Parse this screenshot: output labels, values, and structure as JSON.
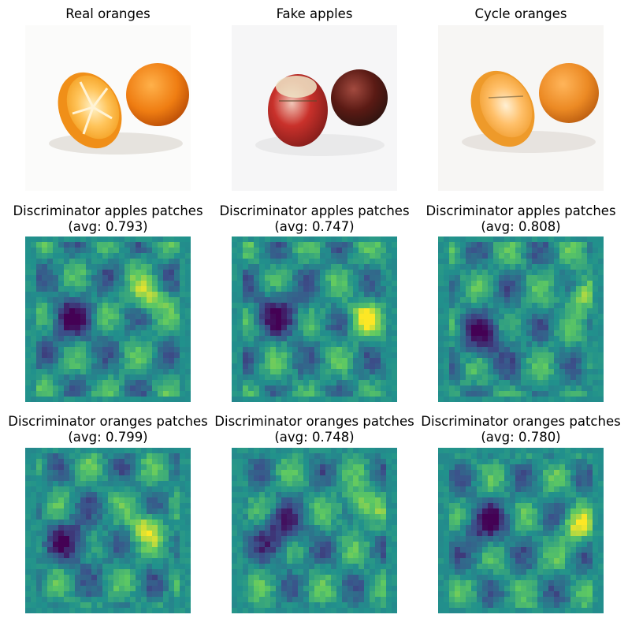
{
  "figure": {
    "row1": [
      {
        "title": "Real oranges",
        "content": "photo of a halved orange and a whole orange on white background"
      },
      {
        "title": "Fake apples",
        "content": "photo of two red apples generated from oranges"
      },
      {
        "title": "Cycle oranges",
        "content": "reconstructed photo of a halved orange and a whole orange"
      }
    ],
    "row2": [
      {
        "title": "Discriminator apples patches",
        "avg": "(avg: 0.793)"
      },
      {
        "title": "Discriminator apples patches",
        "avg": "(avg: 0.747)"
      },
      {
        "title": "Discriminator apples patches",
        "avg": "(avg: 0.808)"
      }
    ],
    "row3": [
      {
        "title": "Discriminator oranges patches",
        "avg": "(avg: 0.799)"
      },
      {
        "title": "Discriminator oranges patches",
        "avg": "(avg: 0.748)"
      },
      {
        "title": "Discriminator oranges patches",
        "avg": "(avg: 0.780)"
      }
    ],
    "colormap": [
      "#440154",
      "#3b528b",
      "#21918c",
      "#5ec962",
      "#fde725"
    ]
  }
}
